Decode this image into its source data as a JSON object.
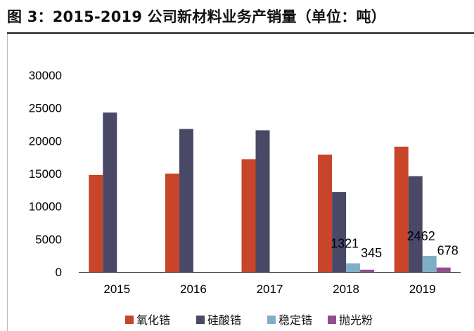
{
  "header": {
    "figure_title": "图 3：2015-2019 公司新材料业务产销量（单位：吨）"
  },
  "chart_data": {
    "type": "bar",
    "title": "图 3：2015-2019 公司新材料业务产销量（单位：吨）",
    "categories": [
      "2015",
      "2016",
      "2017",
      "2018",
      "2019"
    ],
    "series": [
      {
        "name": "氧化锆",
        "color": "#c8452a",
        "values": [
          14800,
          15000,
          17200,
          17900,
          19100
        ]
      },
      {
        "name": "硅酸锆",
        "color": "#4a4867",
        "values": [
          24300,
          21800,
          21600,
          12200,
          14600
        ]
      },
      {
        "name": "稳定锆",
        "color": "#7fafc6",
        "values": [
          null,
          null,
          null,
          1321,
          2462
        ]
      },
      {
        "name": "抛光粉",
        "color": "#8e4f8b",
        "values": [
          null,
          null,
          null,
          345,
          678
        ]
      }
    ],
    "data_labels": [
      {
        "series": "稳定锆",
        "category": "2018",
        "text": "1321"
      },
      {
        "series": "抛光粉",
        "category": "2018",
        "text": "345"
      },
      {
        "series": "稳定锆",
        "category": "2019",
        "text": "2462"
      },
      {
        "series": "抛光粉",
        "category": "2019",
        "text": "678"
      }
    ],
    "y_ticks": [
      "0",
      "5000",
      "10000",
      "15000",
      "20000",
      "25000",
      "30000"
    ],
    "ylim": [
      0,
      30000
    ],
    "xlabel": "",
    "ylabel": "",
    "grid": false,
    "legend": "bottom"
  }
}
